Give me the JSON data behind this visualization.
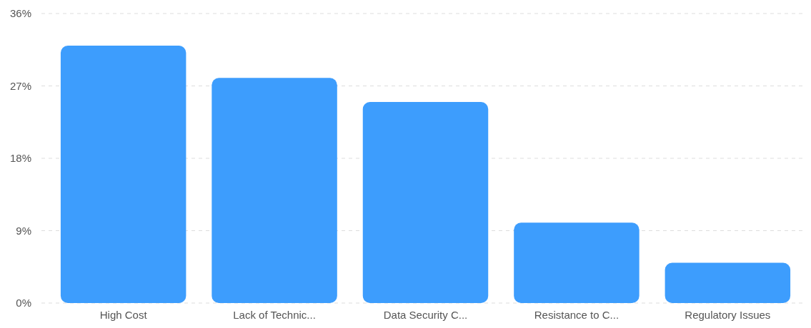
{
  "chart_data": {
    "type": "bar",
    "categories": [
      "High Cost",
      "Lack of Technic...",
      "Data Security C...",
      "Resistance to C...",
      "Regulatory Issues"
    ],
    "values": [
      32,
      28,
      25,
      10,
      5
    ],
    "color": "#3d9dfd",
    "ylim": [
      0,
      36
    ],
    "yticks": [
      {
        "value": 0,
        "label": "0%"
      },
      {
        "value": 9,
        "label": "9%"
      },
      {
        "value": 18,
        "label": "18%"
      },
      {
        "value": 27,
        "label": "27%"
      },
      {
        "value": 36,
        "label": "36%"
      }
    ],
    "grid": "y"
  }
}
